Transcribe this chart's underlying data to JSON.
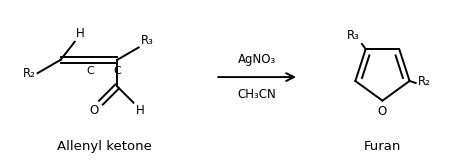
{
  "background_color": "#ffffff",
  "line_color": "#000000",
  "line_width": 1.4,
  "reagent_line": "AgNO₃",
  "solvent_line": "CH₃CN",
  "left_label": "Allenyl ketone",
  "right_label": "Furan",
  "font_size": 8.5,
  "label_font_size": 9.5,
  "sub_font_size": 7.5
}
